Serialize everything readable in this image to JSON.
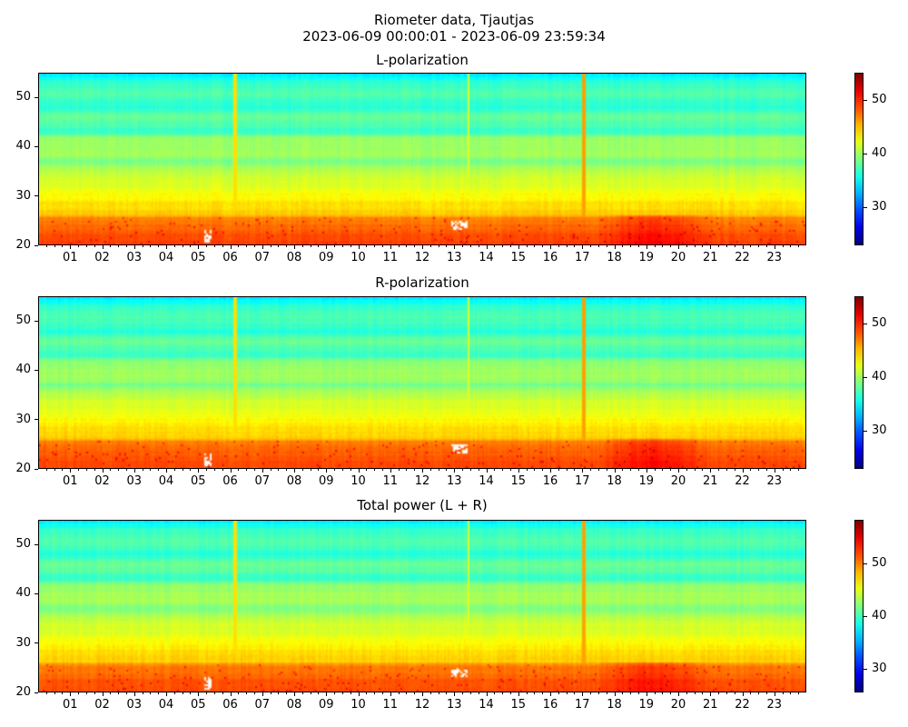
{
  "title": "Riometer data, Tjautjas",
  "subtitle": "2023-06-09 00:00:01 - 2023-06-09 23:59:34",
  "chart_data": [
    {
      "type": "heatmap",
      "title": "L-polarization",
      "x_unit": "hour",
      "xlim": [
        0,
        24
      ],
      "x_ticks": [
        "01",
        "02",
        "03",
        "04",
        "05",
        "06",
        "07",
        "08",
        "09",
        "10",
        "11",
        "12",
        "13",
        "14",
        "15",
        "16",
        "17",
        "18",
        "19",
        "20",
        "21",
        "22",
        "23"
      ],
      "ylim": [
        20,
        55
      ],
      "y_ticks": [
        20,
        30,
        40,
        50
      ],
      "colormap": "jet",
      "clim": [
        23,
        55
      ],
      "colorbar_ticks": [
        30,
        40,
        50
      ],
      "profile_offset": 0
    },
    {
      "type": "heatmap",
      "title": "R-polarization",
      "x_unit": "hour",
      "xlim": [
        0,
        24
      ],
      "x_ticks": [
        "01",
        "02",
        "03",
        "04",
        "05",
        "06",
        "07",
        "08",
        "09",
        "10",
        "11",
        "12",
        "13",
        "14",
        "15",
        "16",
        "17",
        "18",
        "19",
        "20",
        "21",
        "22",
        "23"
      ],
      "ylim": [
        20,
        55
      ],
      "y_ticks": [
        20,
        30,
        40,
        50
      ],
      "colormap": "jet",
      "clim": [
        23,
        55
      ],
      "colorbar_ticks": [
        30,
        40,
        50
      ],
      "profile_offset": 0
    },
    {
      "type": "heatmap",
      "title": "Total power (L + R)",
      "x_unit": "hour",
      "xlim": [
        0,
        24
      ],
      "x_ticks": [
        "01",
        "02",
        "03",
        "04",
        "05",
        "06",
        "07",
        "08",
        "09",
        "10",
        "11",
        "12",
        "13",
        "14",
        "15",
        "16",
        "17",
        "18",
        "19",
        "20",
        "21",
        "22",
        "23"
      ],
      "ylim": [
        20,
        55
      ],
      "y_ticks": [
        20,
        30,
        40,
        50
      ],
      "colormap": "jet",
      "clim": [
        25.5,
        58.3
      ],
      "colorbar_ticks": [
        30,
        40,
        50
      ],
      "profile_offset": 3
    }
  ],
  "frequency_profile": {
    "y": [
      20,
      22,
      24,
      25.5,
      26,
      28,
      30,
      32,
      34,
      36,
      37,
      38,
      40,
      42,
      43,
      44.5,
      46,
      48,
      49.5,
      51,
      53,
      55
    ],
    "value": [
      49,
      48.5,
      47.5,
      47,
      44.5,
      44,
      43,
      42,
      41.5,
      40,
      38.5,
      40,
      40,
      39.5,
      36.5,
      37.5,
      38.5,
      36,
      37,
      37.5,
      36.5,
      34
    ]
  },
  "events": [
    {
      "kind": "vertical-spike",
      "hour": 17.08,
      "value": 46
    },
    {
      "kind": "vertical-spike",
      "hour": 13.45,
      "value": 42
    },
    {
      "kind": "vertical-spike",
      "hour": 6.15,
      "value": 44
    },
    {
      "kind": "missing",
      "hour_range": [
        12.9,
        13.4
      ],
      "y_range": [
        23,
        25
      ]
    },
    {
      "kind": "missing",
      "hour_range": [
        5.2,
        5.4
      ],
      "y_range": [
        20.5,
        23
      ]
    },
    {
      "kind": "enhancement",
      "hour_range": [
        17.5,
        21
      ],
      "y_range": [
        20,
        26
      ],
      "delta": 2
    }
  ]
}
